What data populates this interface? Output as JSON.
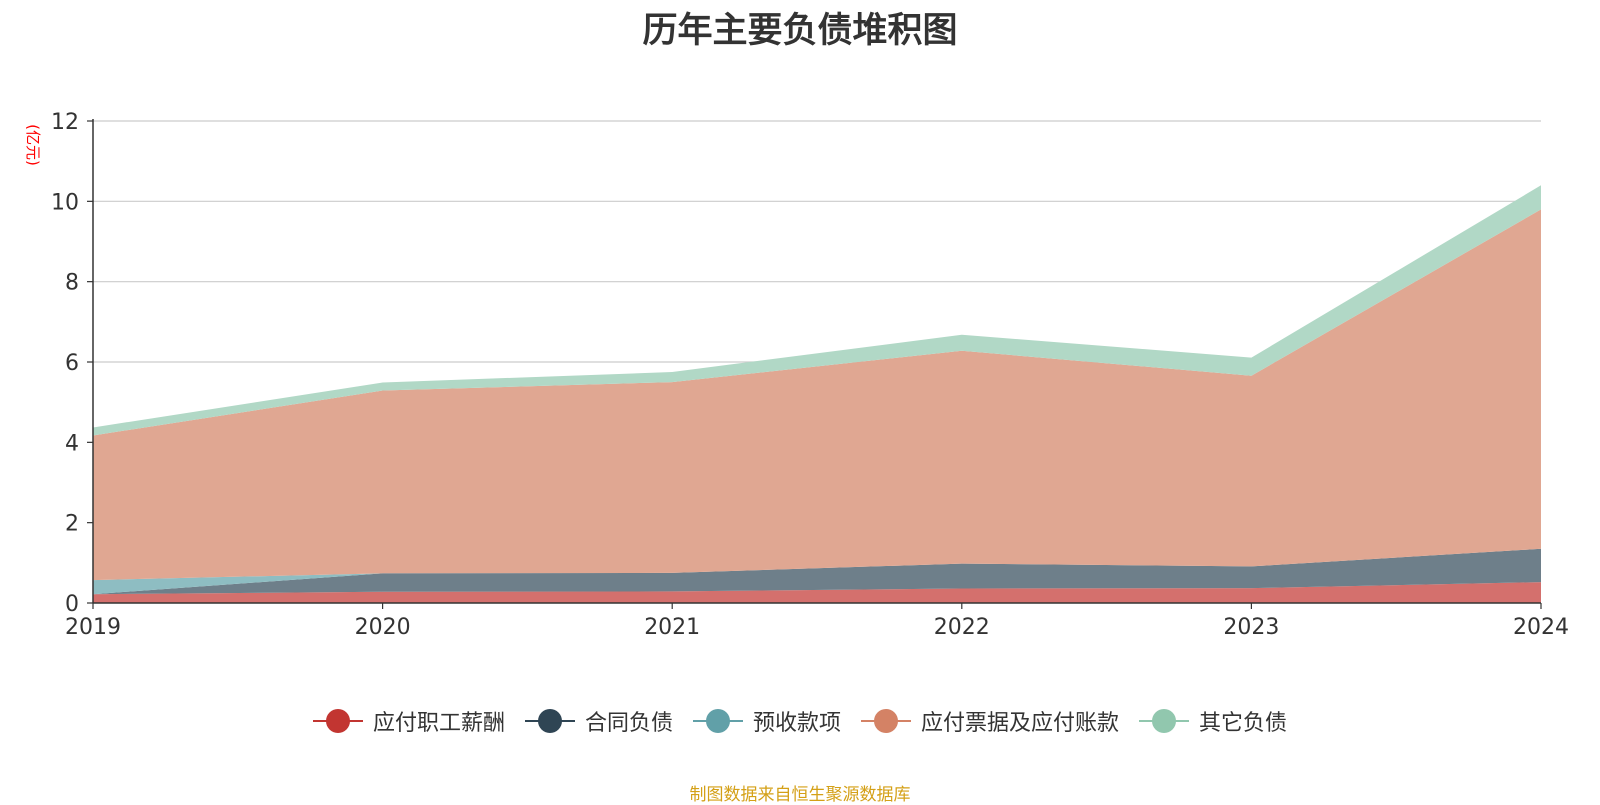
{
  "chart_data": {
    "type": "area",
    "stacked": true,
    "title": "历年主要负债堆积图",
    "unit_label": "(亿元)",
    "xlabel": "",
    "ylabel": "(亿元)",
    "x": [
      "2019",
      "2020",
      "2021",
      "2022",
      "2023",
      "2024"
    ],
    "ylim": [
      0,
      12
    ],
    "yticks": [
      0,
      2,
      4,
      6,
      8,
      10,
      12
    ],
    "grid": true,
    "legend_position": "bottom",
    "series": [
      {
        "name": "应付职工薪酬",
        "color": "#c23531",
        "fill": "#d4706d",
        "values": [
          0.22,
          0.28,
          0.29,
          0.36,
          0.37,
          0.52
        ]
      },
      {
        "name": "合同负债",
        "color": "#2f4554",
        "fill": "#6e7f8a",
        "values": [
          0.0,
          0.46,
          0.46,
          0.62,
          0.54,
          0.83
        ]
      },
      {
        "name": "预收款项",
        "color": "#61a0a8",
        "fill": "#8ebdc2",
        "values": [
          0.35,
          0.0,
          0.0,
          0.0,
          0.0,
          0.0
        ]
      },
      {
        "name": "应付票据及应付账款",
        "color": "#d48265",
        "fill": "#e0a792",
        "values": [
          3.6,
          4.55,
          4.75,
          5.3,
          4.75,
          8.45
        ]
      },
      {
        "name": "其它负债",
        "color": "#91c7ae",
        "fill": "#b1d8c6",
        "values": [
          0.2,
          0.2,
          0.25,
          0.4,
          0.45,
          0.6
        ]
      }
    ]
  },
  "footer": {
    "source": "制图数据来自恒生聚源数据库"
  }
}
